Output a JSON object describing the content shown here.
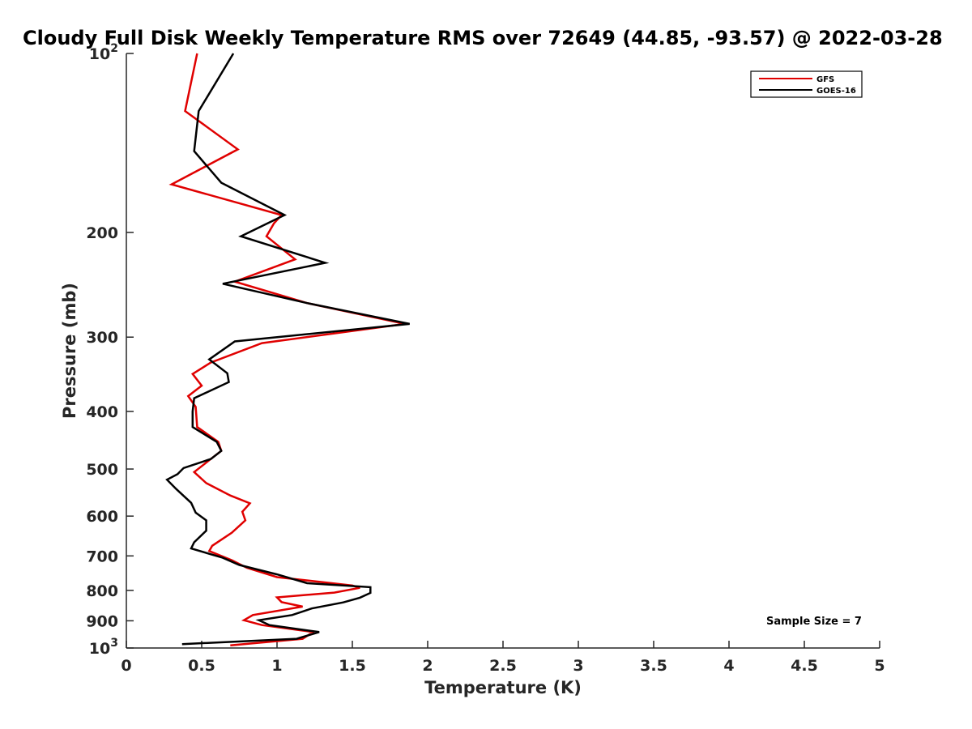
{
  "chart_data": {
    "type": "line",
    "title": "Cloudy Full Disk Weekly Temperature RMS over 72649 (44.85, -93.57) @ 2022-03-28",
    "xlabel": "Temperature (K)",
    "ylabel": "Pressure (mb)",
    "xlim": [
      0,
      5
    ],
    "ylim": [
      100,
      1000
    ],
    "y_scale": "log",
    "y_reversed": true,
    "grid": false,
    "legend_position": "top-right",
    "x_ticks": [
      "0",
      "0.5",
      "1",
      "1.5",
      "2",
      "2.5",
      "3",
      "3.5",
      "4",
      "4.5",
      "5"
    ],
    "y_ticks": [
      {
        "value": 100,
        "base": "10",
        "exp": "2"
      },
      {
        "value": 200,
        "label": "200"
      },
      {
        "value": 300,
        "label": "300"
      },
      {
        "value": 400,
        "label": "400"
      },
      {
        "value": 500,
        "label": "500"
      },
      {
        "value": 600,
        "label": "600"
      },
      {
        "value": 700,
        "label": "700"
      },
      {
        "value": 800,
        "label": "800"
      },
      {
        "value": 900,
        "label": "900"
      },
      {
        "value": 1000,
        "base": "10",
        "exp": "3"
      }
    ],
    "annotation": "Sample Size = 7",
    "series": [
      {
        "name": "GFS",
        "color": "#e00000",
        "points": [
          [
            0.47,
            100
          ],
          [
            0.39,
            125
          ],
          [
            0.74,
            145
          ],
          [
            0.3,
            166
          ],
          [
            1.03,
            187
          ],
          [
            0.98,
            193
          ],
          [
            0.93,
            203
          ],
          [
            1.12,
            222
          ],
          [
            0.72,
            242
          ],
          [
            1.2,
            263
          ],
          [
            1.85,
            285
          ],
          [
            0.9,
            307
          ],
          [
            0.56,
            331
          ],
          [
            0.44,
            346
          ],
          [
            0.5,
            362
          ],
          [
            0.41,
            377
          ],
          [
            0.46,
            393
          ],
          [
            0.47,
            425
          ],
          [
            0.61,
            450
          ],
          [
            0.63,
            466
          ],
          [
            0.56,
            481
          ],
          [
            0.45,
            506
          ],
          [
            0.53,
            528
          ],
          [
            0.69,
            554
          ],
          [
            0.82,
            571
          ],
          [
            0.77,
            590
          ],
          [
            0.79,
            610
          ],
          [
            0.7,
            640
          ],
          [
            0.57,
            673
          ],
          [
            0.55,
            687
          ],
          [
            0.7,
            712
          ],
          [
            0.8,
            733
          ],
          [
            1.0,
            760
          ],
          [
            1.5,
            785
          ],
          [
            1.55,
            792
          ],
          [
            1.38,
            807
          ],
          [
            1.0,
            822
          ],
          [
            1.03,
            837
          ],
          [
            1.17,
            852
          ],
          [
            0.84,
            880
          ],
          [
            0.78,
            898
          ],
          [
            0.9,
            915
          ],
          [
            1.24,
            940
          ],
          [
            1.17,
            965
          ],
          [
            0.69,
            990
          ]
        ]
      },
      {
        "name": "GOES-16",
        "color": "#000000",
        "points": [
          [
            0.71,
            100
          ],
          [
            0.48,
            125
          ],
          [
            0.45,
            146
          ],
          [
            0.63,
            165
          ],
          [
            1.05,
            187
          ],
          [
            0.76,
            203
          ],
          [
            1.32,
            225
          ],
          [
            0.64,
            244
          ],
          [
            1.2,
            263
          ],
          [
            1.88,
            285
          ],
          [
            0.72,
            305
          ],
          [
            0.55,
            327
          ],
          [
            0.67,
            345
          ],
          [
            0.68,
            357
          ],
          [
            0.45,
            380
          ],
          [
            0.44,
            400
          ],
          [
            0.44,
            425
          ],
          [
            0.6,
            450
          ],
          [
            0.63,
            466
          ],
          [
            0.56,
            481
          ],
          [
            0.38,
            498
          ],
          [
            0.34,
            510
          ],
          [
            0.27,
            521
          ],
          [
            0.33,
            540
          ],
          [
            0.43,
            570
          ],
          [
            0.46,
            592
          ],
          [
            0.53,
            610
          ],
          [
            0.53,
            635
          ],
          [
            0.45,
            664
          ],
          [
            0.43,
            680
          ],
          [
            0.64,
            705
          ],
          [
            0.75,
            725
          ],
          [
            1.0,
            752
          ],
          [
            1.2,
            778
          ],
          [
            1.62,
            790
          ],
          [
            1.62,
            808
          ],
          [
            1.55,
            823
          ],
          [
            1.44,
            838
          ],
          [
            1.23,
            858
          ],
          [
            1.1,
            880
          ],
          [
            0.88,
            898
          ],
          [
            0.95,
            915
          ],
          [
            1.28,
            940
          ],
          [
            1.13,
            965
          ],
          [
            0.37,
            985
          ]
        ]
      }
    ]
  }
}
